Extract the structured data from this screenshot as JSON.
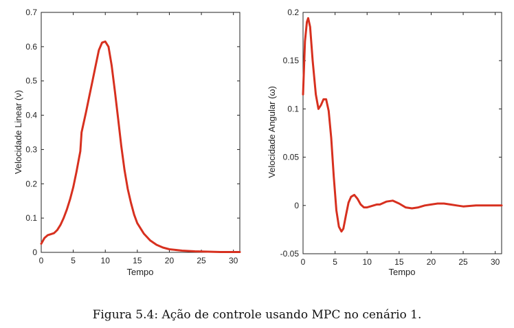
{
  "caption": "Figura 5.4: Ação de controle usando MPC no cenário 1.",
  "colors": {
    "line": "#d7301f",
    "axis": "#222222"
  },
  "chart_data": [
    {
      "type": "line",
      "title": "",
      "xlabel": "Tempo",
      "ylabel": "Velocidade Linear (ν)",
      "xlim": [
        0,
        31
      ],
      "ylim": [
        0,
        0.7
      ],
      "xticks": [
        0,
        5,
        10,
        15,
        20,
        25,
        30
      ],
      "yticks": [
        0,
        0.1,
        0.2,
        0.3,
        0.4,
        0.5,
        0.6,
        0.7
      ],
      "ytick_labels": [
        "0",
        "0.1",
        "0.2",
        "0.3",
        "0.4",
        "0.5",
        "0.6",
        "0.7"
      ],
      "series": [
        {
          "name": "v",
          "x": [
            0,
            0.5,
            1,
            1.5,
            2,
            2.5,
            3,
            3.5,
            4,
            4.5,
            5,
            5.5,
            5.9,
            6.1,
            6.3,
            7,
            7.5,
            8,
            8.5,
            9,
            9.5,
            10,
            10.5,
            11,
            11.5,
            12,
            12.5,
            13,
            13.5,
            14,
            14.5,
            15,
            16,
            17,
            18,
            19,
            20,
            22,
            24,
            26,
            28,
            31
          ],
          "y": [
            0.025,
            0.042,
            0.05,
            0.053,
            0.056,
            0.065,
            0.08,
            0.1,
            0.125,
            0.155,
            0.19,
            0.235,
            0.275,
            0.295,
            0.35,
            0.41,
            0.455,
            0.5,
            0.545,
            0.59,
            0.612,
            0.615,
            0.6,
            0.545,
            0.47,
            0.39,
            0.31,
            0.24,
            0.185,
            0.145,
            0.11,
            0.085,
            0.055,
            0.035,
            0.022,
            0.014,
            0.009,
            0.005,
            0.003,
            0.002,
            0.001,
            0.001
          ]
        }
      ]
    },
    {
      "type": "line",
      "title": "",
      "xlabel": "Tempo",
      "ylabel": "Velocidade Angular (ω)",
      "xlim": [
        0,
        31
      ],
      "ylim": [
        -0.05,
        0.2
      ],
      "xticks": [
        0,
        5,
        10,
        15,
        20,
        25,
        30
      ],
      "yticks": [
        -0.05,
        0,
        0.05,
        0.1,
        0.15,
        0.2
      ],
      "ytick_labels": [
        "-0.05",
        "0",
        "0.05",
        "0.1",
        "0.15",
        "0.2"
      ],
      "series": [
        {
          "name": "omega",
          "x": [
            0,
            0.3,
            0.6,
            0.8,
            1.1,
            1.5,
            2,
            2.4,
            2.8,
            3.2,
            3.6,
            4,
            4.4,
            4.8,
            5.2,
            5.6,
            6,
            6.3,
            6.7,
            7.1,
            7.5,
            8,
            8.5,
            9,
            9.5,
            10,
            10.5,
            11,
            11.5,
            12,
            13,
            14,
            15,
            16,
            17,
            18,
            19,
            20,
            21,
            22,
            23,
            24,
            25,
            27,
            29,
            31
          ],
          "y": [
            0.115,
            0.17,
            0.19,
            0.194,
            0.185,
            0.15,
            0.115,
            0.1,
            0.104,
            0.11,
            0.11,
            0.098,
            0.07,
            0.03,
            -0.005,
            -0.022,
            -0.027,
            -0.024,
            -0.01,
            0.003,
            0.009,
            0.011,
            0.007,
            0.001,
            -0.002,
            -0.002,
            -0.001,
            0,
            0.001,
            0.001,
            0.004,
            0.005,
            0.002,
            -0.002,
            -0.003,
            -0.002,
            0,
            0.001,
            0.002,
            0.002,
            0.001,
            0,
            -0.001,
            0,
            0,
            0
          ]
        }
      ]
    }
  ]
}
